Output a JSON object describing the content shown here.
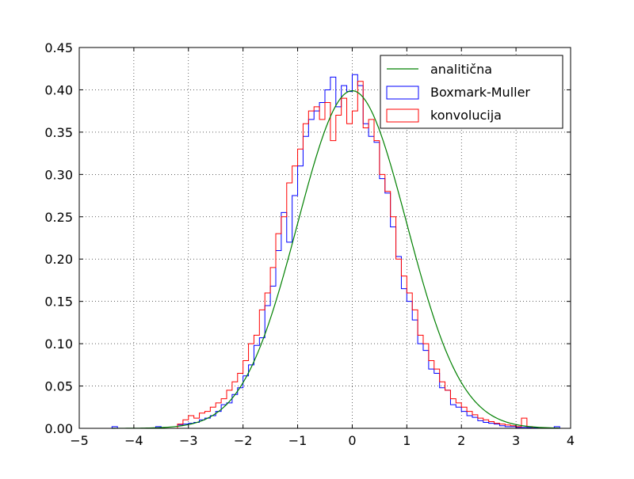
{
  "chart_data": {
    "type": "line",
    "title": "",
    "xlabel": "",
    "ylabel": "",
    "xlim": [
      -5,
      4
    ],
    "ylim": [
      0,
      0.45
    ],
    "x_ticks": [
      -5,
      -4,
      -3,
      -2,
      -1,
      0,
      1,
      2,
      3,
      4
    ],
    "y_ticks": [
      0,
      0.05,
      0.1,
      0.15,
      0.2,
      0.25,
      0.3,
      0.35,
      0.4,
      0.45
    ],
    "x_tick_labels": [
      "−5",
      "−4",
      "−3",
      "−2",
      "−1",
      "0",
      "1",
      "2",
      "3",
      "4"
    ],
    "y_tick_labels": [
      "0.00",
      "0.05",
      "0.10",
      "0.15",
      "0.20",
      "0.25",
      "0.30",
      "0.35",
      "0.40",
      "0.45"
    ],
    "grid": true,
    "legend_position": "top-right",
    "legend_entries": [
      "analitična",
      "Boxmark-Muller",
      "konvolucija"
    ],
    "series": [
      {
        "name": "analitična",
        "kind": "line",
        "color": "#008000",
        "function": "standard normal density",
        "x": [
          -4.4,
          -4.0,
          -3.6,
          -3.2,
          -2.8,
          -2.4,
          -2.0,
          -1.8,
          -1.6,
          -1.4,
          -1.2,
          -1.0,
          -0.8,
          -0.6,
          -0.4,
          -0.2,
          0.0,
          0.2,
          0.4,
          0.6,
          0.8,
          1.0,
          1.2,
          1.4,
          1.6,
          1.8,
          2.0,
          2.4,
          2.8,
          3.2,
          3.6,
          3.8
        ],
        "y": [
          3e-05,
          0.00013,
          0.0006,
          0.0024,
          0.0079,
          0.0224,
          0.054,
          0.079,
          0.111,
          0.15,
          0.194,
          0.242,
          0.29,
          0.333,
          0.368,
          0.391,
          0.399,
          0.391,
          0.368,
          0.333,
          0.29,
          0.242,
          0.194,
          0.15,
          0.111,
          0.079,
          0.054,
          0.0224,
          0.0079,
          0.0024,
          0.0006,
          0.0003
        ]
      },
      {
        "name": "Boxmark-Muller",
        "kind": "step",
        "color": "#0000ff",
        "x": [
          -4.4,
          -4.3,
          -3.6,
          -3.5,
          -3.2,
          -3.1,
          -3.0,
          -2.9,
          -2.8,
          -2.7,
          -2.6,
          -2.5,
          -2.4,
          -2.3,
          -2.2,
          -2.1,
          -2.0,
          -1.9,
          -1.8,
          -1.7,
          -1.6,
          -1.5,
          -1.4,
          -1.3,
          -1.2,
          -1.1,
          -1.0,
          -0.9,
          -0.8,
          -0.7,
          -0.6,
          -0.5,
          -0.4,
          -0.3,
          -0.2,
          -0.1,
          0.0,
          0.1,
          0.2,
          0.3,
          0.4,
          0.5,
          0.6,
          0.7,
          0.8,
          0.9,
          1.0,
          1.1,
          1.2,
          1.3,
          1.4,
          1.5,
          1.6,
          1.7,
          1.8,
          1.9,
          2.0,
          2.1,
          2.2,
          2.3,
          2.4,
          2.5,
          2.6,
          2.7,
          2.8,
          2.9,
          3.0,
          3.1,
          3.2,
          3.3,
          3.4,
          3.5,
          3.6,
          3.7
        ],
        "y": [
          0.002,
          0.0,
          0.002,
          0.0,
          0.004,
          0.005,
          0.006,
          0.007,
          0.01,
          0.012,
          0.015,
          0.02,
          0.028,
          0.03,
          0.04,
          0.048,
          0.062,
          0.075,
          0.098,
          0.107,
          0.145,
          0.168,
          0.21,
          0.255,
          0.22,
          0.275,
          0.31,
          0.345,
          0.365,
          0.375,
          0.385,
          0.4,
          0.415,
          0.38,
          0.405,
          0.398,
          0.418,
          0.405,
          0.36,
          0.345,
          0.338,
          0.295,
          0.278,
          0.238,
          0.203,
          0.165,
          0.15,
          0.128,
          0.1,
          0.092,
          0.07,
          0.065,
          0.048,
          0.045,
          0.028,
          0.025,
          0.02,
          0.015,
          0.013,
          0.009,
          0.007,
          0.006,
          0.005,
          0.003,
          0.002,
          0.002,
          0.001,
          0.001,
          0.0008,
          0.0006,
          0.0004,
          0.0003,
          0.0002,
          0.002
        ]
      },
      {
        "name": "konvolucija",
        "kind": "step",
        "color": "#ff0000",
        "x": [
          -3.2,
          -3.1,
          -3.0,
          -2.9,
          -2.8,
          -2.7,
          -2.6,
          -2.5,
          -2.4,
          -2.3,
          -2.2,
          -2.1,
          -2.0,
          -1.9,
          -1.8,
          -1.7,
          -1.6,
          -1.5,
          -1.4,
          -1.3,
          -1.2,
          -1.1,
          -1.0,
          -0.9,
          -0.8,
          -0.7,
          -0.6,
          -0.5,
          -0.4,
          -0.3,
          -0.2,
          -0.1,
          0.0,
          0.1,
          0.2,
          0.3,
          0.4,
          0.5,
          0.6,
          0.7,
          0.8,
          0.9,
          1.0,
          1.1,
          1.2,
          1.3,
          1.4,
          1.5,
          1.6,
          1.7,
          1.8,
          1.9,
          2.0,
          2.1,
          2.2,
          2.3,
          2.4,
          2.5,
          2.6,
          2.7,
          2.8,
          2.9,
          3.0,
          3.1,
          3.2
        ],
        "y": [
          0.005,
          0.01,
          0.015,
          0.012,
          0.018,
          0.02,
          0.025,
          0.03,
          0.035,
          0.045,
          0.055,
          0.065,
          0.08,
          0.1,
          0.11,
          0.14,
          0.16,
          0.19,
          0.23,
          0.25,
          0.29,
          0.31,
          0.33,
          0.36,
          0.375,
          0.38,
          0.365,
          0.385,
          0.34,
          0.37,
          0.39,
          0.36,
          0.375,
          0.41,
          0.355,
          0.365,
          0.34,
          0.3,
          0.28,
          0.25,
          0.2,
          0.18,
          0.16,
          0.14,
          0.11,
          0.1,
          0.08,
          0.07,
          0.055,
          0.045,
          0.035,
          0.03,
          0.025,
          0.02,
          0.016,
          0.012,
          0.01,
          0.008,
          0.006,
          0.005,
          0.004,
          0.003,
          0.002,
          0.012,
          0.002
        ]
      }
    ]
  }
}
